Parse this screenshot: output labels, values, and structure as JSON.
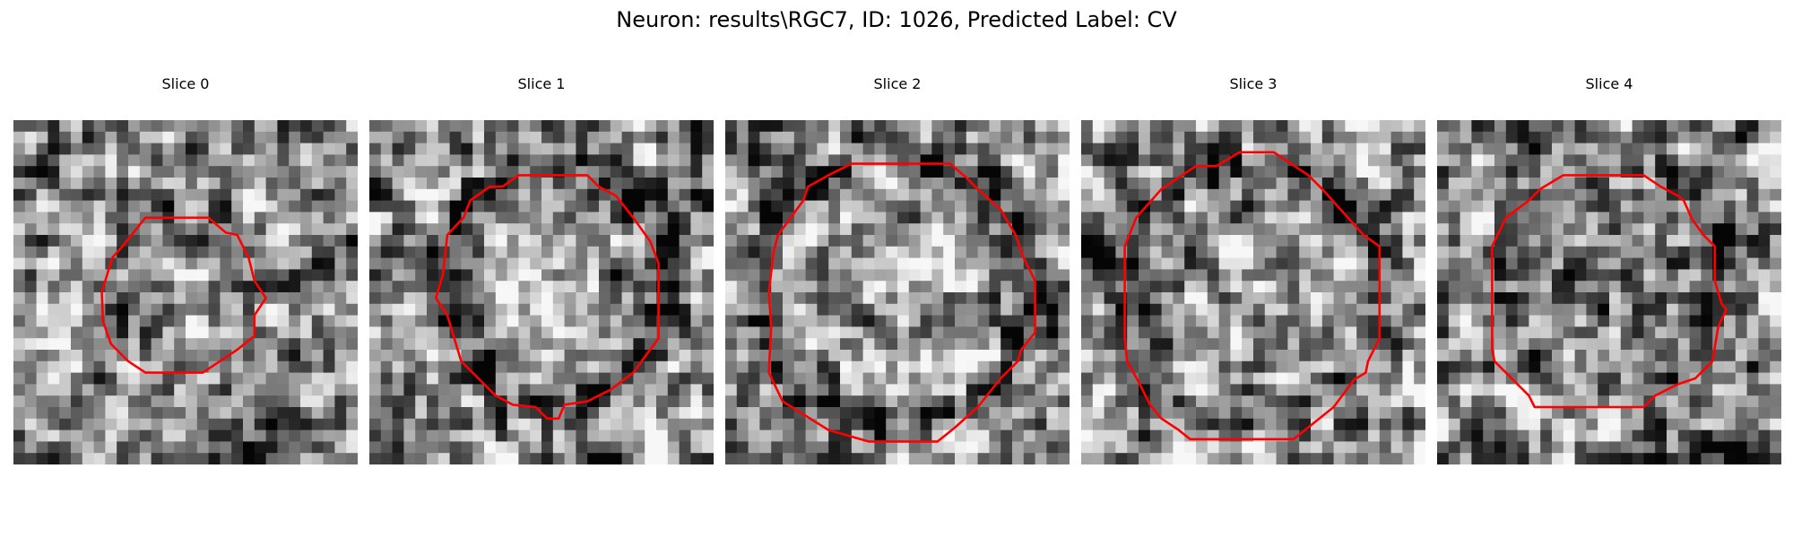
{
  "figure": {
    "title": "Neuron: results\\RGC7, ID: 1026, Predicted Label: CV",
    "colors": {
      "contour": "#ff0000",
      "background": "#ffffff"
    },
    "panels": [
      {
        "label": "Slice 0"
      },
      {
        "label": "Slice 1"
      },
      {
        "label": "Slice 2"
      },
      {
        "label": "Slice 3"
      },
      {
        "label": "Slice 4"
      }
    ]
  }
}
